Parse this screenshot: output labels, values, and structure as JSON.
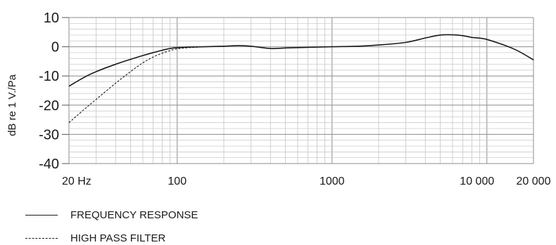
{
  "chart_data": {
    "type": "line",
    "title": "",
    "ylabel": "dB re 1 V./Pa",
    "xlabel": "",
    "xscale": "log",
    "xlim": [
      20,
      20000
    ],
    "ylim": [
      -40,
      10
    ],
    "grid": true,
    "yticks": [
      {
        "value": 10,
        "label": "10"
      },
      {
        "value": 0,
        "label": "0"
      },
      {
        "value": -10,
        "label": "-10"
      },
      {
        "value": -20,
        "label": "-20"
      },
      {
        "value": -30,
        "label": "-30"
      },
      {
        "value": -40,
        "label": "-40"
      }
    ],
    "xticks": [
      {
        "value": 20,
        "label": "20 Hz"
      },
      {
        "value": 100,
        "label": "100"
      },
      {
        "value": 1000,
        "label": "1000"
      },
      {
        "value": 10000,
        "label": "10 000"
      },
      {
        "value": 20000,
        "label": "20 000"
      }
    ],
    "series": [
      {
        "name": "FREQUENCY RESPONSE",
        "style": "solid",
        "color": "#1a1a1a",
        "x": [
          20,
          25,
          30,
          40,
          50,
          60,
          70,
          80,
          90,
          100,
          120,
          150,
          200,
          250,
          300,
          400,
          500,
          700,
          1000,
          1500,
          2000,
          3000,
          4000,
          5000,
          6000,
          7000,
          8000,
          10000,
          15000,
          20000
        ],
        "y": [
          -13.5,
          -10.5,
          -8.5,
          -6,
          -4.3,
          -3,
          -2,
          -1.2,
          -0.6,
          -0.3,
          -0.1,
          0,
          0.2,
          0.4,
          0.2,
          -0.6,
          -0.4,
          -0.2,
          0,
          0.2,
          0.6,
          1.5,
          3,
          4,
          4.1,
          3.8,
          3.2,
          2.5,
          -0.8,
          -4.5
        ]
      },
      {
        "name": "HIGH PASS FILTER",
        "style": "dashed",
        "color": "#1a1a1a",
        "x": [
          20,
          25,
          30,
          40,
          50,
          60,
          70,
          80,
          90,
          100,
          120,
          150
        ],
        "y": [
          -26,
          -21.5,
          -18,
          -12.5,
          -8.5,
          -5.5,
          -3.5,
          -2.2,
          -1.3,
          -0.7,
          -0.3,
          0
        ]
      }
    ],
    "legend_position": "bottom-left"
  }
}
